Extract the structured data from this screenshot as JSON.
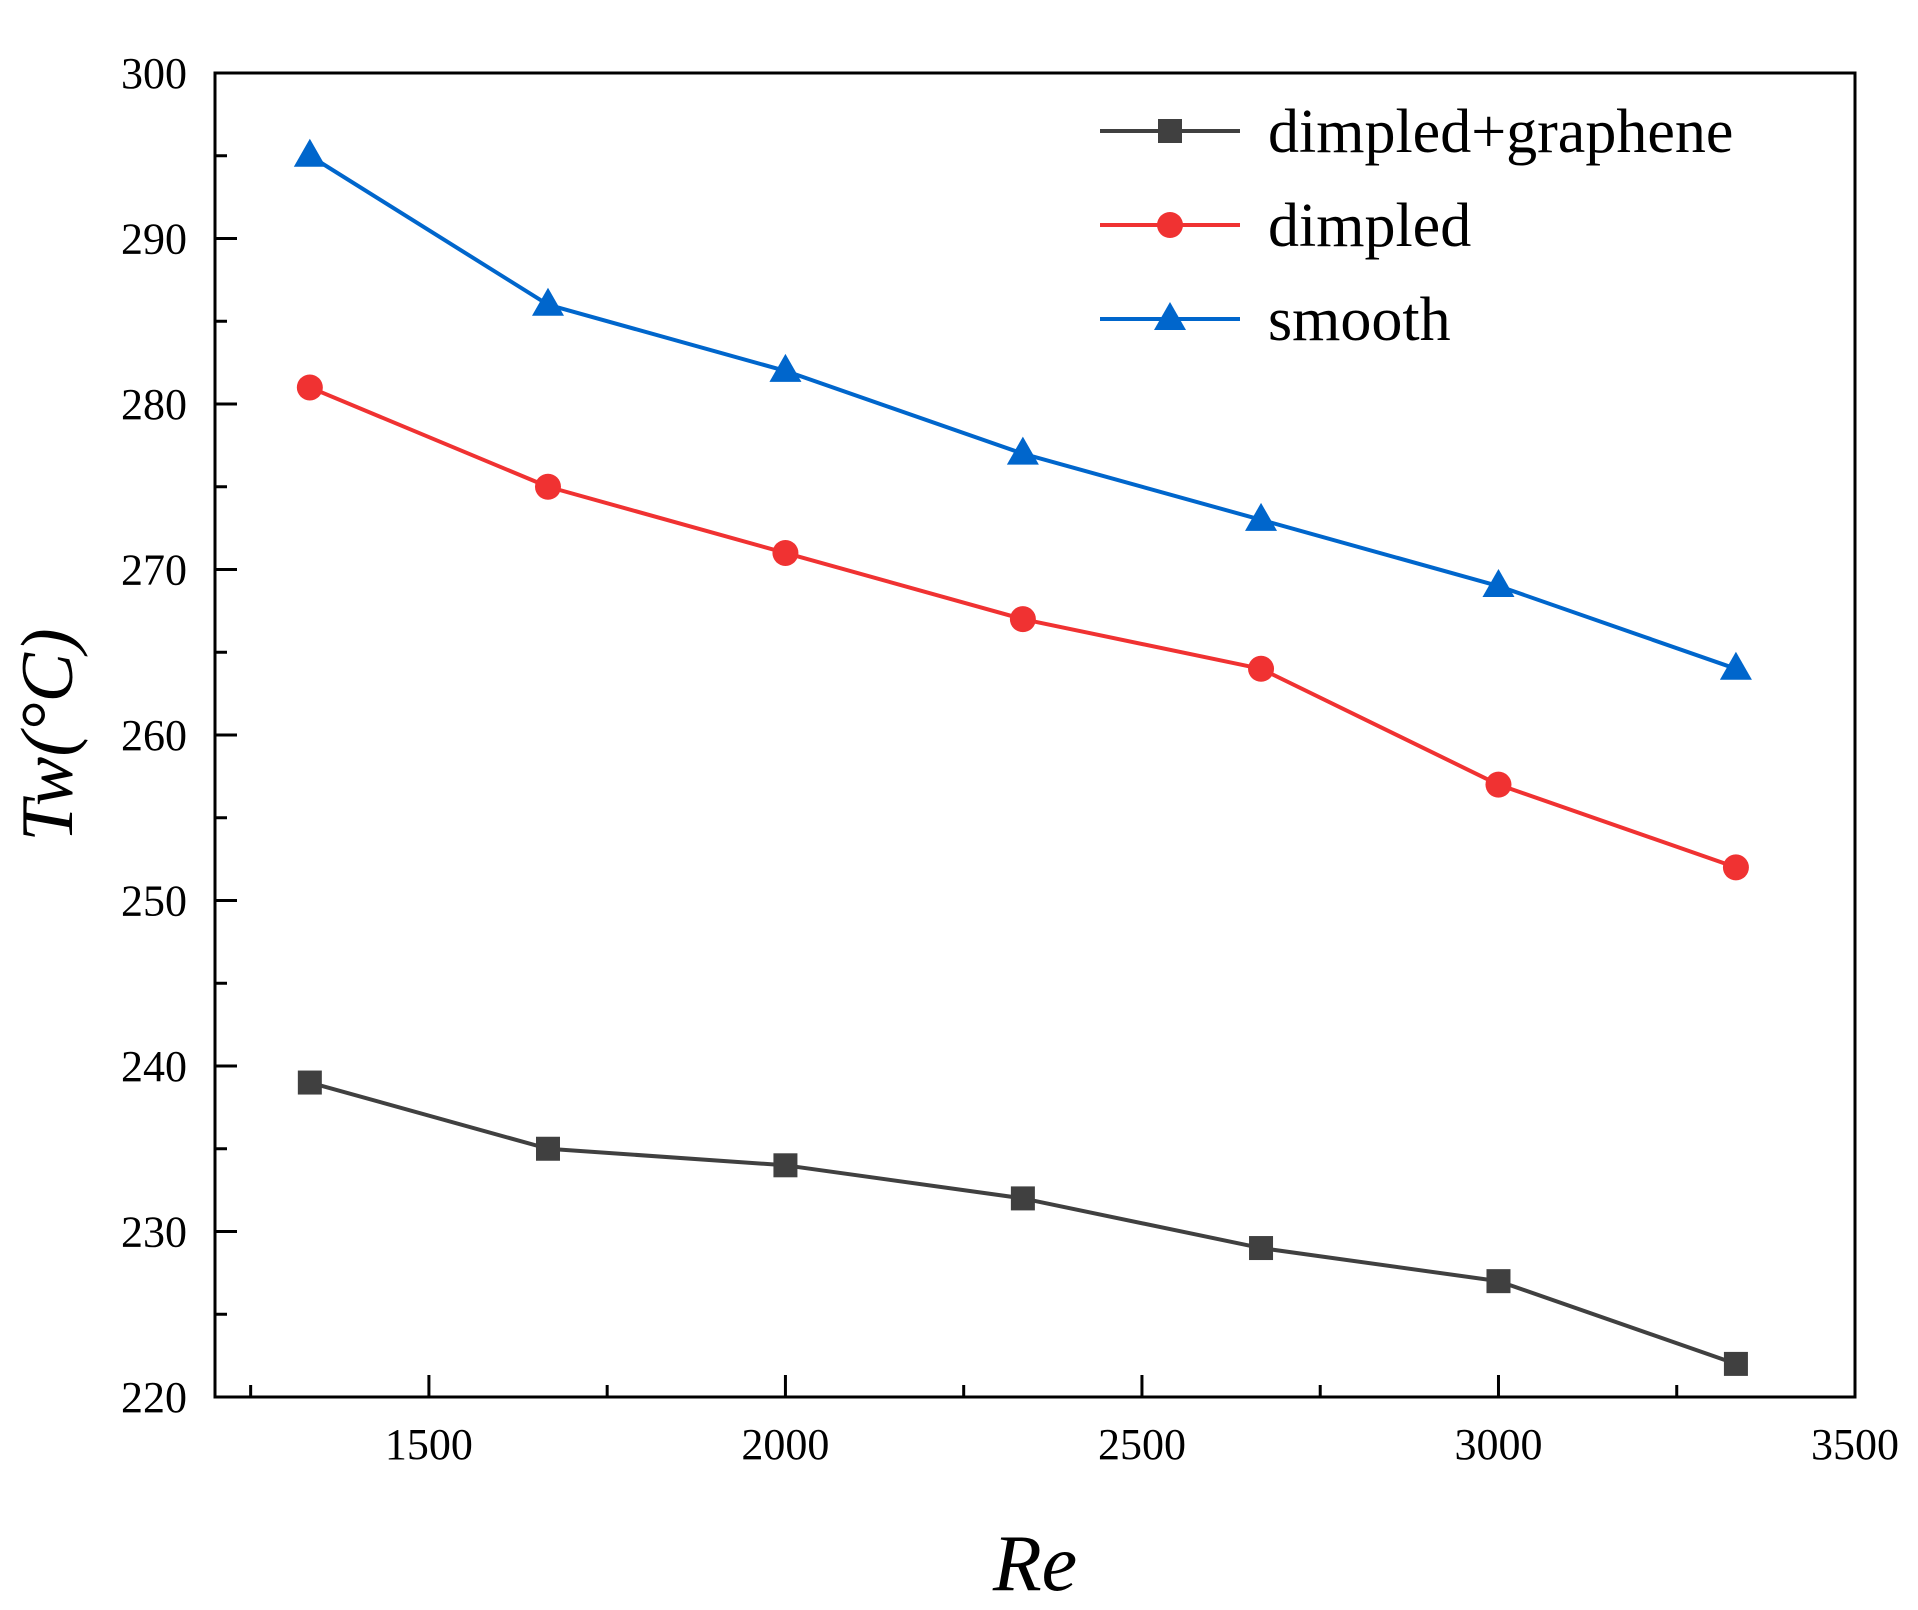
{
  "chart_data": {
    "type": "line",
    "title": "",
    "xlabel": "Re",
    "ylabel": "Tw(°C)",
    "xlim": [
      1200,
      3500
    ],
    "ylim": [
      220,
      300
    ],
    "xticks": [
      1500,
      2000,
      2500,
      3000,
      3500
    ],
    "yticks": [
      220,
      230,
      240,
      250,
      260,
      270,
      280,
      290,
      300
    ],
    "x": [
      1333,
      1667,
      2000,
      2333,
      2667,
      3000,
      3333
    ],
    "legend_position": "top-right",
    "series": [
      {
        "name": "dimpled+graphene",
        "color": "#404040",
        "marker": "square",
        "values": [
          239,
          235,
          234,
          232,
          229,
          227,
          222
        ]
      },
      {
        "name": "dimpled",
        "color": "#f03232",
        "marker": "circle",
        "values": [
          281,
          275,
          271,
          267,
          264,
          257,
          252
        ]
      },
      {
        "name": "smooth",
        "color": "#0066cc",
        "marker": "triangle",
        "values": [
          295,
          286,
          282,
          277,
          273,
          269,
          264
        ]
      }
    ]
  }
}
